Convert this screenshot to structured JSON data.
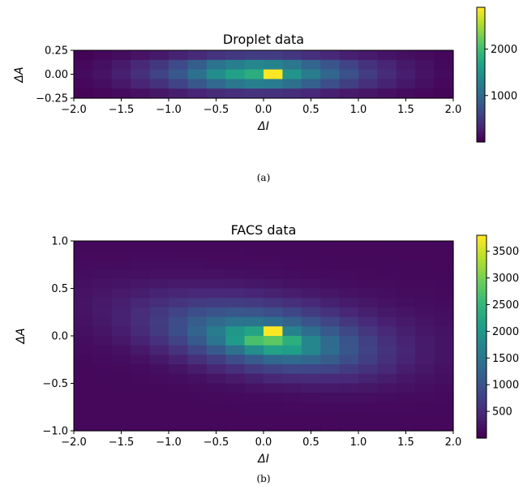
{
  "chart_data": [
    {
      "type": "heatmap",
      "title": "Droplet data",
      "xlabel": "ΔI",
      "ylabel": "ΔA",
      "xlim": [
        -2.0,
        2.0
      ],
      "ylim": [
        -0.25,
        0.25
      ],
      "x_ticks": [
        "−2.0",
        "−1.5",
        "−1.0",
        "−0.5",
        "0.0",
        "0.5",
        "1.0",
        "1.5",
        "2.0"
      ],
      "y_ticks": [
        "0.25",
        "0.00",
        "−0.25"
      ],
      "colorbar_ticks": [
        "2000",
        "1000"
      ],
      "colorbar_range": [
        0,
        2900
      ],
      "colormap": "viridis",
      "x_bins": 20,
      "y_bins": 5,
      "counts": [
        [
          30,
          60,
          100,
          150,
          200,
          280,
          350,
          430,
          480,
          520,
          520,
          460,
          390,
          320,
          260,
          210,
          160,
          120,
          80,
          50
        ],
        [
          60,
          120,
          210,
          330,
          470,
          640,
          860,
          1100,
          1250,
          1350,
          1300,
          1150,
          950,
          760,
          580,
          420,
          300,
          200,
          130,
          70
        ],
        [
          80,
          150,
          260,
          400,
          580,
          800,
          1080,
          1420,
          1650,
          1800,
          2900,
          1500,
          1200,
          950,
          720,
          520,
          360,
          240,
          150,
          80
        ],
        [
          60,
          110,
          190,
          300,
          420,
          580,
          780,
          990,
          1150,
          1250,
          1200,
          1050,
          880,
          700,
          540,
          400,
          280,
          190,
          120,
          60
        ],
        [
          30,
          55,
          90,
          130,
          180,
          240,
          300,
          360,
          400,
          430,
          420,
          380,
          320,
          260,
          210,
          170,
          130,
          90,
          60,
          40
        ]
      ]
    },
    {
      "type": "heatmap",
      "title": "FACS data",
      "xlabel": "ΔI",
      "ylabel": "ΔA",
      "xlim": [
        -2.0,
        2.0
      ],
      "ylim": [
        -1.0,
        1.0
      ],
      "x_ticks": [
        "−2.0",
        "−1.5",
        "−1.0",
        "−0.5",
        "0.0",
        "0.5",
        "1.0",
        "1.5",
        "2.0"
      ],
      "y_ticks": [
        "1.0",
        "0.5",
        "0.0",
        "−0.5",
        "−1.0"
      ],
      "colorbar_ticks": [
        "3500",
        "3000",
        "2500",
        "2000",
        "1500",
        "1000",
        "500"
      ],
      "colorbar_range": [
        0,
        3800
      ],
      "colormap": "viridis",
      "x_bins": 20,
      "y_bins": 20,
      "peak": {
        "x_index": 10,
        "y_index": 9,
        "value": 3800
      }
    }
  ],
  "captions": [
    "(a)",
    "(b)"
  ]
}
